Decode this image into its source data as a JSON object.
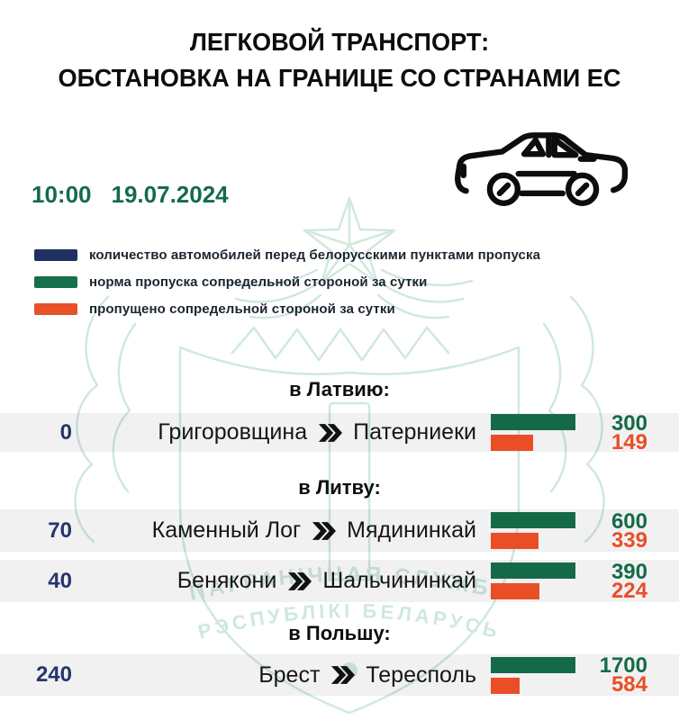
{
  "title": {
    "line1": "ЛЕГКОВОЙ ТРАНСПОРТ:",
    "line2": "ОБСТАНОВКА НА ГРАНИЦЕ СО СТРАНАМИ ЕС"
  },
  "timestamp": {
    "time": "10:00",
    "date": "19.07.2024"
  },
  "watermark": {
    "line1": "ПАГРАНІЧНАЯ СЛУЖБА",
    "line2": "РЭСПУБЛІКІ БЕЛАРУСЬ"
  },
  "colors": {
    "queue_navy": "#1f3160",
    "norm_green": "#146a47",
    "passed_orange": "#e94e26",
    "time_green": "#156b4a",
    "row_bg": "#f1f0f0",
    "watermark_teal": "#cde7dc"
  },
  "chart_data": {
    "type": "bar",
    "title": "ЛЕГКОВОЙ ТРАНСПОРТ: ОБСТАНОВКА НА ГРАНИЦЕ СО СТРАНАМИ ЕС",
    "as_of": "10:00 19.07.2024",
    "legend": [
      {
        "color": "#1f3160",
        "label": "количество автомобилей перед белорусскими пунктами пропуска"
      },
      {
        "color": "#156f4b",
        "label": "норма пропуска сопредельной стороной за сутки"
      },
      {
        "color": "#e8502a",
        "label": "пропущено сопредельной стороной за сутки"
      }
    ],
    "bar_layout": "green bar = full daily norm, orange bar width = passed / norm",
    "sections": [
      {
        "header": "в Латвию:",
        "rows": [
          {
            "queue": 0,
            "from": "Григоровщина",
            "to": "Патерниеки",
            "norm": 300,
            "passed": 149
          }
        ]
      },
      {
        "header": "в Литву:",
        "rows": [
          {
            "queue": 70,
            "from": "Каменный Лог",
            "to": "Мядининкай",
            "norm": 600,
            "passed": 339
          },
          {
            "queue": 40,
            "from": "Бенякони",
            "to": "Шальчининкай",
            "norm": 390,
            "passed": 224
          }
        ]
      },
      {
        "header": "в Польшу:",
        "rows": [
          {
            "queue": 240,
            "from": "Брест",
            "to": "Тересполь",
            "norm": 1700,
            "passed": 584
          }
        ]
      }
    ]
  }
}
